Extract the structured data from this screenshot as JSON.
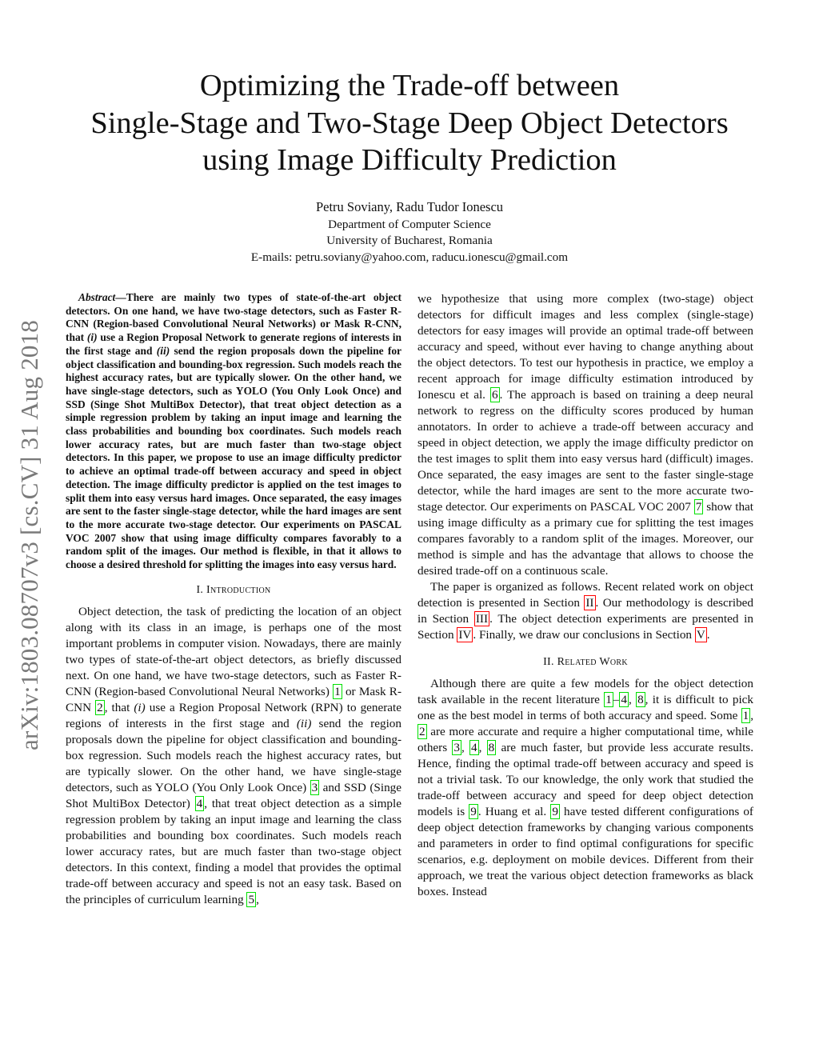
{
  "title_lines": [
    "Optimizing the Trade-off between",
    "Single-Stage and Two-Stage Deep Object Detectors",
    "using Image Difficulty Prediction"
  ],
  "authors": "Petru Soviany, Radu Tudor Ionescu",
  "affiliation": [
    "Department of Computer Science",
    "University of Bucharest, Romania",
    "E-mails: petru.soviany@yahoo.com, raducu.ionescu@gmail.com"
  ],
  "arxiv_id": "arXiv:1803.08707v3  [cs.CV]  31 Aug 2018",
  "abstract": {
    "lead": "Abstract",
    "segments": [
      "—There are mainly two types of state-of-the-art object detectors. On one hand, we have two-stage detectors, such as Faster R-CNN (Region-based Convolutional Neural Networks) or Mask R-CNN, that ",
      {
        "i": "(i)"
      },
      " use a Region Proposal Network to generate regions of interests in the first stage and ",
      {
        "i": "(ii)"
      },
      " send the region proposals down the pipeline for object classification and bounding-box regression. Such models reach the highest accuracy rates, but are typically slower. On the other hand, we have single-stage detectors, such as YOLO (You Only Look Once) and SSD (Singe Shot MultiBox Detector), that treat object detection as a simple regression problem by taking an input image and learning the class probabilities and bounding box coordinates. Such models reach lower accuracy rates, but are much faster than two-stage object detectors. In this paper, we propose to use an image difficulty predictor to achieve an optimal trade-off between accuracy and speed in object detection. The image difficulty predictor is applied on the test images to split them into easy versus hard images. Once separated, the easy images are sent to the faster single-stage detector, while the hard images are sent to the more accurate two-stage detector. Our experiments on PASCAL VOC 2007 show that using image difficulty compares favorably to a random split of the images. Our method is flexible, in that it allows to choose a desired threshold for splitting the images into easy versus hard."
    ]
  },
  "sections": {
    "intro": {
      "num": "I. ",
      "title": "Introduction"
    },
    "related": {
      "num": "II. ",
      "title": "Related Work"
    }
  },
  "intro_paragraph": [
    "Object detection, the task of predicting the location of an object along with its class in an image, is perhaps one of the most important problems in computer vision. Nowadays, there are mainly two types of state-of-the-art object detectors, as briefly discussed next. On one hand, we have two-stage detectors, such as Faster R-CNN (Region-based Convolutional Neural Networks) ",
    {
      "c": "1"
    },
    " or Mask R-CNN ",
    {
      "c": "2"
    },
    ", that ",
    {
      "i": "(i)"
    },
    " use a Region Proposal Network (RPN) to generate regions of interests in the first stage and ",
    {
      "i": "(ii)"
    },
    " send the region proposals down the pipeline for object classification and bounding-box regression. Such models reach the highest accuracy rates, but are typically slower. On the other hand, we have single-stage detectors, such as YOLO (You Only Look Once) ",
    {
      "c": "3"
    },
    " and SSD (Singe Shot MultiBox Detector) ",
    {
      "c": "4"
    },
    ", that treat object detection as a simple regression problem by taking an input image and learning the class probabilities and bounding box coordinates. Such models reach lower accuracy rates, but are much faster than two-stage object detectors. In this context, finding a model that provides the optimal trade-off between accuracy and speed is not an easy task. Based on the principles of curriculum learning ",
    {
      "c": "5"
    },
    ","
  ],
  "right_paragraph_1": [
    "we hypothesize that using more complex (two-stage) object detectors for difficult images and less complex (single-stage) detectors for easy images will provide an optimal trade-off between accuracy and speed, without ever having to change anything about the object detectors. To test our hypothesis in practice, we employ a recent approach for image difficulty estimation introduced by Ionescu et al. ",
    {
      "c": "6"
    },
    ". The approach is based on training a deep neural network to regress on the difficulty scores produced by human annotators. In order to achieve a trade-off between accuracy and speed in object detection, we apply the image difficulty predictor on the test images to split them into easy versus hard (difficult) images. Once separated, the easy images are sent to the faster single-stage detector, while the hard images are sent to the more accurate two-stage detector. Our experiments on PASCAL VOC 2007 ",
    {
      "c": "7"
    },
    " show that using image difficulty as a primary cue for splitting the test images compares favorably to a random split of the images. Moreover, our method is simple and has the advantage that allows to choose the desired trade-off on a continuous scale."
  ],
  "right_paragraph_2": [
    "The paper is organized as follows. Recent related work on object detection is presented in Section ",
    {
      "s": "II"
    },
    ". Our methodology is described in Section ",
    {
      "s": "III"
    },
    ". The object detection experiments are presented in Section ",
    {
      "s": "IV"
    },
    ". Finally, we draw our conclusions in Section ",
    {
      "s": "V"
    },
    "."
  ],
  "related_paragraph": [
    "Although there are quite a few models for the object detection task available in the recent literature ",
    {
      "c": "1"
    },
    "–",
    {
      "c": "4"
    },
    ", ",
    {
      "c": "8"
    },
    ", it is difficult to pick one as the best model in terms of both accuracy and speed. Some ",
    {
      "c": "1"
    },
    ", ",
    {
      "c": "2"
    },
    " are more accurate and require a higher computational time, while others ",
    {
      "c": "3"
    },
    ", ",
    {
      "c": "4"
    },
    ", ",
    {
      "c": "8"
    },
    " are much faster, but provide less accurate results. Hence, finding the optimal trade-off between accuracy and speed is not a trivial task. To our knowledge, the only work that studied the trade-off between accuracy and speed for deep object detection models is ",
    {
      "c": "9"
    },
    ". Huang et al. ",
    {
      "c": "9"
    },
    " have tested different configurations of deep object detection frameworks by changing various components and parameters in order to find optimal configurations for specific scenarios, e.g. deployment on mobile devices. Different from their approach, we treat the various object detection frameworks as black boxes. Instead"
  ],
  "colors": {
    "citation_box": "#00e000",
    "section_ref_box": "#ff0000",
    "arxiv_stamp": "#7a7a7a"
  }
}
